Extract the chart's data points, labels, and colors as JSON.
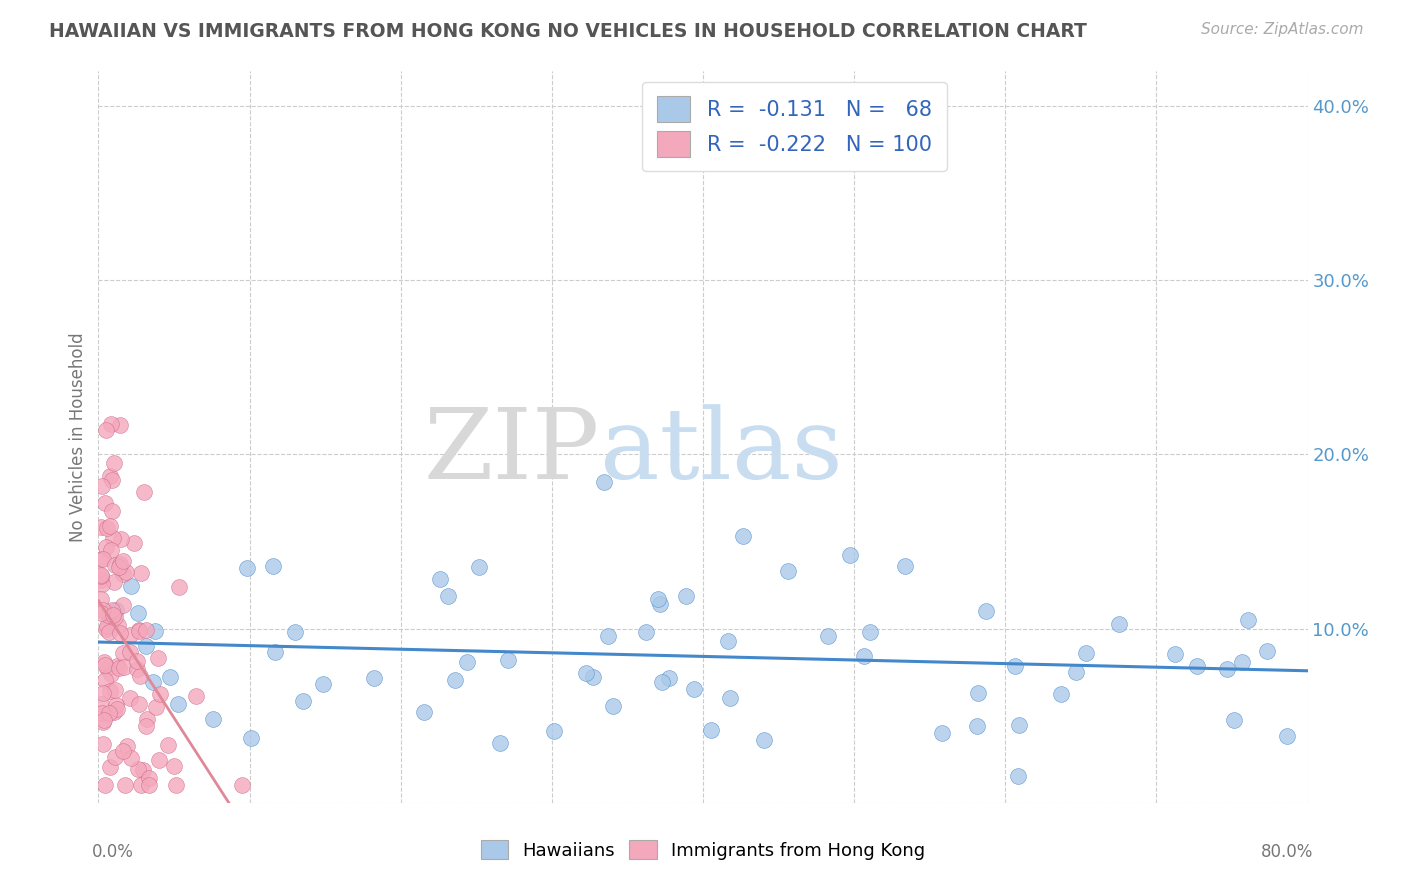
{
  "title": "HAWAIIAN VS IMMIGRANTS FROM HONG KONG NO VEHICLES IN HOUSEHOLD CORRELATION CHART",
  "source": "Source: ZipAtlas.com",
  "ylabel": "No Vehicles in Household",
  "legend_hawaiians": "Hawaiians",
  "legend_hk": "Immigrants from Hong Kong",
  "r_hawaiians": -0.131,
  "n_hawaiians": 68,
  "r_hk": -0.222,
  "n_hk": 100,
  "hawaiians_color": "#aac8e8",
  "hk_color": "#f4a8bc",
  "trend_hawaiians_color": "#4488cc",
  "trend_hk_color": "#e08898",
  "background_color": "#ffffff",
  "xlim": [
    0.0,
    0.8
  ],
  "ylim": [
    0.0,
    0.42
  ],
  "y_ticks": [
    0.0,
    0.1,
    0.2,
    0.3,
    0.4
  ],
  "y_labels": [
    "",
    "10.0%",
    "20.0%",
    "30.0%",
    "40.0%"
  ],
  "right_axis_color": "#5599cc",
  "grid_color": "#cccccc",
  "title_color": "#555555",
  "source_color": "#aaaaaa",
  "watermark_zip_color": "#d8d8d8",
  "watermark_atlas_color": "#c8ddf0",
  "seed": 12
}
